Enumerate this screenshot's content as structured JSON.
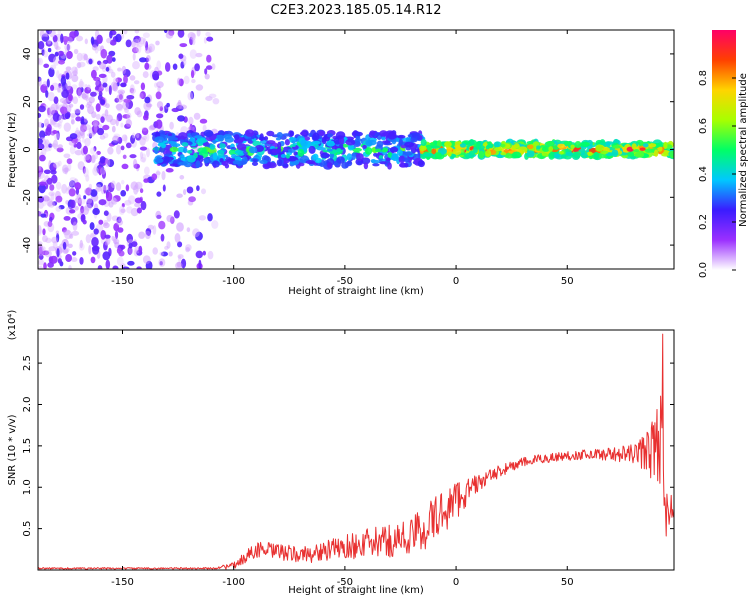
{
  "title": "C2E3.2023.185.05.14.R12",
  "chart_data": [
    {
      "type": "heatmap",
      "xlabel": "Height of straight line (km)",
      "ylabel": "Frequency (Hz)",
      "xlim": [
        -188,
        98
      ],
      "ylim": [
        -50,
        50
      ],
      "xticks": [
        -150,
        -100,
        -50,
        0,
        50
      ],
      "yticks": [
        -40,
        -20,
        0,
        20,
        40
      ],
      "colorbar": {
        "label": "Normalized spectral amplitude",
        "range": [
          0.0,
          1.0
        ],
        "ticks": [
          "0.0",
          "0.2",
          "0.4",
          "0.6",
          "0.8"
        ],
        "tick_values": [
          0.0,
          0.2,
          0.4,
          0.6,
          0.8
        ],
        "colors": [
          "#ffffff",
          "#9b30ff",
          "#3a1cff",
          "#00c8ff",
          "#00ff66",
          "#a8ff00",
          "#ffd400",
          "#ff4000",
          "#ff0066"
        ]
      },
      "features": [
        {
          "name": "noise",
          "x": [
            -188,
            -108
          ],
          "y": [
            -50,
            50
          ],
          "amplitude": [
            0.0,
            0.25
          ]
        },
        {
          "name": "band",
          "x": [
            -135,
            -15
          ],
          "center_freq": 0,
          "half_width": 7,
          "amplitude": [
            0.2,
            0.6
          ]
        },
        {
          "name": "band",
          "x": [
            -15,
            98
          ],
          "center_freq": 0,
          "half_width": 3,
          "amplitude": [
            0.4,
            1.0
          ]
        }
      ]
    },
    {
      "type": "line",
      "xlabel": "Height of straight line (km)",
      "ylabel": "SNR (10 * v/v)",
      "y_multiplier": "(x10⁴)",
      "xlim": [
        -188,
        98
      ],
      "ylim": [
        0,
        2.9
      ],
      "xticks": [
        -150,
        -100,
        -50,
        0,
        50
      ],
      "yticks": [
        "0.5",
        "1.0",
        "1.5",
        "2.0",
        "2.5"
      ],
      "ytick_values": [
        0.5,
        1.0,
        1.5,
        2.0,
        2.5
      ],
      "color": "#e83030",
      "trend": {
        "x": [
          -188,
          -110,
          -100,
          -90,
          -80,
          -70,
          -60,
          -50,
          -40,
          -30,
          -20,
          -10,
          0,
          10,
          20,
          30,
          40,
          50,
          60,
          70,
          80,
          88,
          92,
          95,
          98
        ],
        "y": [
          0.02,
          0.02,
          0.05,
          0.25,
          0.22,
          0.18,
          0.22,
          0.28,
          0.32,
          0.35,
          0.4,
          0.6,
          0.85,
          1.05,
          1.2,
          1.3,
          1.35,
          1.38,
          1.4,
          1.4,
          1.4,
          1.45,
          1.6,
          0.6,
          0.7
        ],
        "noise": [
          0.01,
          0.01,
          0.04,
          0.1,
          0.1,
          0.1,
          0.12,
          0.15,
          0.18,
          0.2,
          0.25,
          0.3,
          0.25,
          0.1,
          0.07,
          0.06,
          0.06,
          0.06,
          0.06,
          0.08,
          0.12,
          0.35,
          0.6,
          0.35,
          0.2
        ]
      },
      "peak": {
        "x": 93,
        "y": 2.85
      }
    }
  ]
}
